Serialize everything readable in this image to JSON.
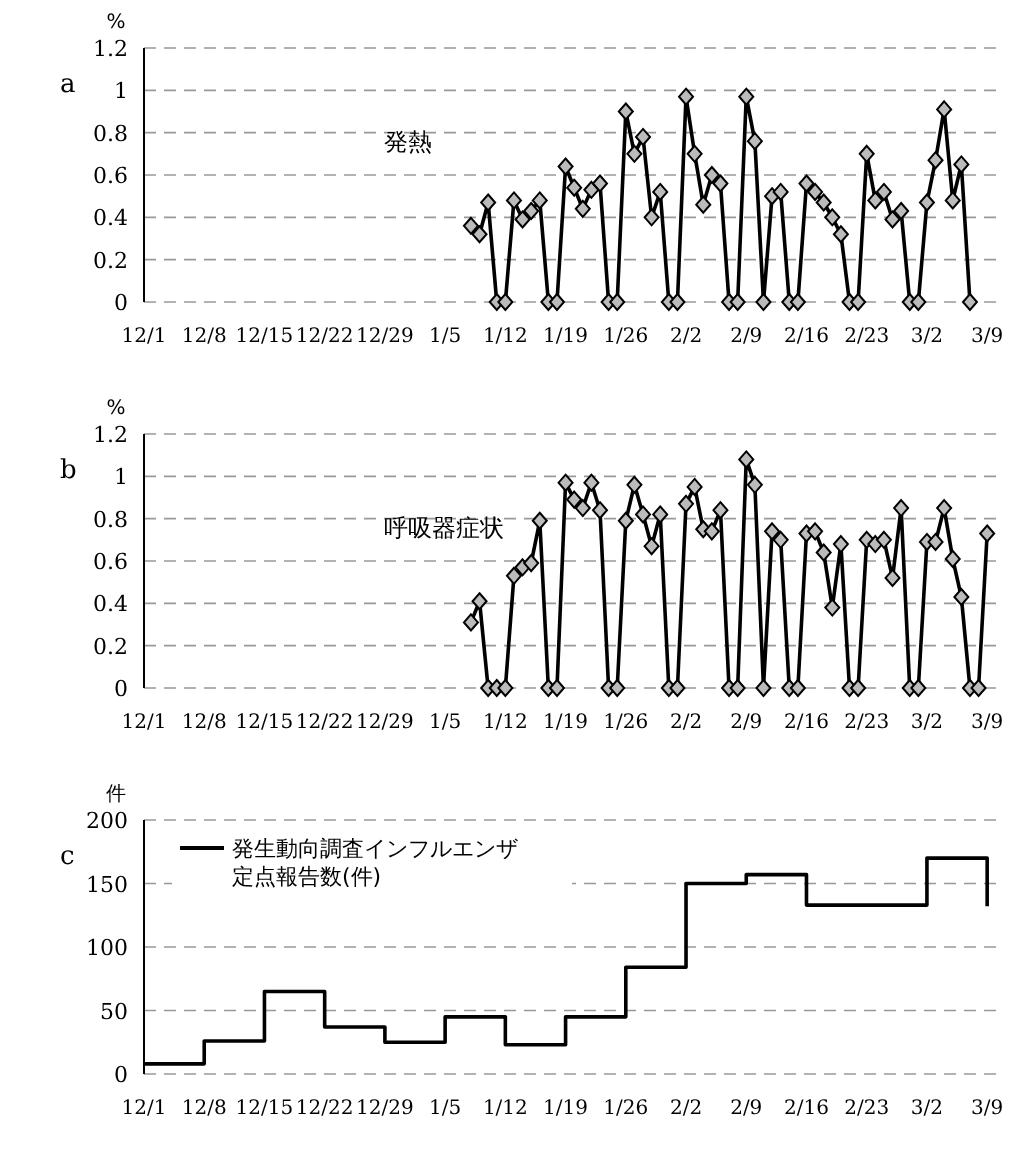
{
  "chart_data": [
    {
      "type": "line",
      "annotations": [
        "a"
      ],
      "ylabel": "%",
      "ylim": [
        0,
        1.2
      ],
      "yticks": [
        0,
        0.2,
        0.4,
        0.6,
        0.8,
        1,
        1.2
      ],
      "grid": "y",
      "marker": "diamond",
      "categories": [
        "12/1",
        null,
        null,
        null,
        null,
        null,
        null,
        "12/8",
        null,
        null,
        null,
        null,
        null,
        null,
        "12/15",
        null,
        null,
        null,
        null,
        null,
        null,
        "12/22",
        null,
        null,
        null,
        null,
        null,
        null,
        "12/29",
        null,
        null,
        null,
        null,
        null,
        null,
        "1/5",
        null,
        null,
        null,
        null,
        null,
        null,
        "1/12",
        null,
        null,
        null,
        null,
        null,
        null,
        "1/19",
        null,
        null,
        null,
        null,
        null,
        null,
        "1/26",
        null,
        null,
        null,
        null,
        null,
        null,
        "2/2",
        null,
        null,
        null,
        null,
        null,
        null,
        "2/9",
        null,
        null,
        null,
        null,
        null,
        null,
        "2/16",
        null,
        null,
        null,
        null,
        null,
        null,
        "2/23",
        null,
        null,
        null,
        null,
        null,
        null,
        "3/2",
        null,
        null,
        null,
        null,
        null,
        null,
        "3/9"
      ],
      "series": [
        {
          "name": "発熱",
          "color": "#000000",
          "values": [
            null,
            null,
            null,
            null,
            null,
            null,
            null,
            null,
            null,
            null,
            null,
            null,
            null,
            null,
            null,
            null,
            null,
            null,
            null,
            null,
            null,
            null,
            null,
            null,
            null,
            null,
            null,
            null,
            null,
            null,
            null,
            null,
            null,
            null,
            null,
            null,
            null,
            null,
            0.36,
            0.32,
            0.47,
            0,
            0,
            0.48,
            0.39,
            0.43,
            0.48,
            0,
            0,
            0.64,
            0.54,
            0.44,
            0.53,
            0.56,
            0,
            0,
            0.9,
            0.7,
            0.78,
            0.4,
            0.52,
            0,
            0,
            0.97,
            0.7,
            0.46,
            0.6,
            0.56,
            0,
            0,
            0.97,
            0.76,
            0,
            0.5,
            0.52,
            0,
            0,
            0.56,
            0.52,
            0.47,
            0.4,
            0.32,
            0,
            0,
            0.7,
            0.48,
            0.52,
            0.39,
            0.43,
            0,
            0,
            0.47,
            0.67,
            0.91,
            0.48,
            0.65,
            0,
            null,
            null
          ]
        }
      ]
    },
    {
      "type": "line",
      "annotations": [
        "b"
      ],
      "ylabel": "%",
      "ylim": [
        0,
        1.2
      ],
      "yticks": [
        0,
        0.2,
        0.4,
        0.6,
        0.8,
        1,
        1.2
      ],
      "grid": "y",
      "marker": "diamond",
      "categories": [
        "12/1",
        null,
        null,
        null,
        null,
        null,
        null,
        "12/8",
        null,
        null,
        null,
        null,
        null,
        null,
        "12/15",
        null,
        null,
        null,
        null,
        null,
        null,
        "12/22",
        null,
        null,
        null,
        null,
        null,
        null,
        "12/29",
        null,
        null,
        null,
        null,
        null,
        null,
        "1/5",
        null,
        null,
        null,
        null,
        null,
        null,
        "1/12",
        null,
        null,
        null,
        null,
        null,
        null,
        "1/19",
        null,
        null,
        null,
        null,
        null,
        null,
        "1/26",
        null,
        null,
        null,
        null,
        null,
        null,
        "2/2",
        null,
        null,
        null,
        null,
        null,
        null,
        "2/9",
        null,
        null,
        null,
        null,
        null,
        null,
        "2/16",
        null,
        null,
        null,
        null,
        null,
        null,
        "2/23",
        null,
        null,
        null,
        null,
        null,
        null,
        "3/2",
        null,
        null,
        null,
        null,
        null,
        null,
        "3/9"
      ],
      "series": [
        {
          "name": "呼吸器症状",
          "color": "#000000",
          "values": [
            null,
            null,
            null,
            null,
            null,
            null,
            null,
            null,
            null,
            null,
            null,
            null,
            null,
            null,
            null,
            null,
            null,
            null,
            null,
            null,
            null,
            null,
            null,
            null,
            null,
            null,
            null,
            null,
            null,
            null,
            null,
            null,
            null,
            null,
            null,
            null,
            null,
            null,
            0.31,
            0.41,
            0,
            0,
            0,
            0.53,
            0.57,
            0.59,
            0.79,
            0,
            0,
            0.97,
            0.89,
            0.85,
            0.97,
            0.84,
            0,
            0,
            0.79,
            0.96,
            0.82,
            0.67,
            0.82,
            0,
            0,
            0.87,
            0.95,
            0.75,
            0.74,
            0.84,
            0,
            0,
            1.08,
            0.96,
            0,
            0.74,
            0.7,
            0,
            0,
            0.73,
            0.74,
            0.64,
            0.38,
            0.68,
            0,
            0,
            0.7,
            0.68,
            0.7,
            0.52,
            0.85,
            0,
            0,
            0.69,
            0.69,
            0.85,
            0.61,
            0.43,
            0,
            0,
            0.73
          ]
        }
      ]
    },
    {
      "type": "step",
      "annotations": [
        "c"
      ],
      "ylabel": "件",
      "ylim": [
        0,
        200
      ],
      "yticks": [
        0,
        50,
        100,
        150,
        200
      ],
      "grid": "y",
      "legend": "top left",
      "categories": [
        "12/1",
        "12/8",
        "12/15",
        "12/22",
        "12/29",
        "1/5",
        "1/12",
        "1/19",
        "1/26",
        "2/2",
        "2/9",
        "2/16",
        "2/23",
        "3/2",
        "3/9"
      ],
      "series": [
        {
          "name": "発生動向調査インフルエンザ定点報告数(件)",
          "color": "#000000",
          "values": [
            8,
            26,
            65,
            37,
            25,
            45,
            23,
            45,
            84,
            150,
            157,
            133,
            133,
            170,
            132
          ]
        }
      ]
    }
  ]
}
